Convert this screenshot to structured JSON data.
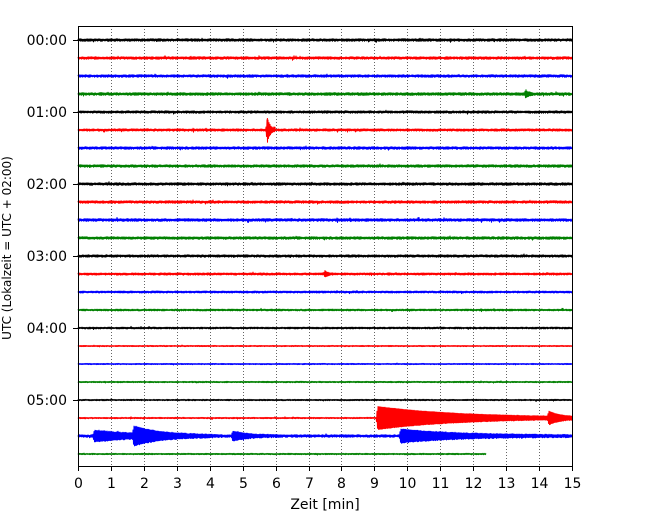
{
  "chart_data": {
    "type": "line",
    "xlabel": "Zeit  [min]",
    "ylabel": "UTC (Lokalzeit = UTC + 02:00)",
    "xlim": [
      0,
      15
    ],
    "x_ticks": [
      "0",
      "1",
      "2",
      "3",
      "4",
      "5",
      "6",
      "7",
      "8",
      "9",
      "10",
      "11",
      "12",
      "13",
      "14",
      "15"
    ],
    "y_tick_labels": [
      "00:00",
      "01:00",
      "02:00",
      "03:00",
      "04:00",
      "05:00"
    ],
    "rows_per_hour": 4,
    "trace_minutes": 15,
    "grid": {
      "vertical": "dotted",
      "horizontal": false
    },
    "colors": [
      "#000000",
      "#ff0000",
      "#0000ff",
      "#008000"
    ],
    "traces": [
      {
        "start": "00:00",
        "color": "#000000",
        "end_min": 15,
        "noise": 1.3
      },
      {
        "start": "00:15",
        "color": "#ff0000",
        "end_min": 15,
        "noise": 1.3
      },
      {
        "start": "00:30",
        "color": "#0000ff",
        "end_min": 15,
        "noise": 1.3
      },
      {
        "start": "00:45",
        "color": "#008000",
        "end_min": 15,
        "noise": 1.4,
        "events": [
          {
            "t": 13.6,
            "amp": 3
          }
        ]
      },
      {
        "start": "01:00",
        "color": "#000000",
        "end_min": 15,
        "noise": 1.2
      },
      {
        "start": "01:15",
        "color": "#ff0000",
        "end_min": 15,
        "noise": 1.2,
        "events": [
          {
            "t": 5.75,
            "amp": 12,
            "up": true
          }
        ]
      },
      {
        "start": "01:30",
        "color": "#0000ff",
        "end_min": 15,
        "noise": 1.3
      },
      {
        "start": "01:45",
        "color": "#008000",
        "end_min": 15,
        "noise": 1.3
      },
      {
        "start": "02:00",
        "color": "#000000",
        "end_min": 15,
        "noise": 1.3
      },
      {
        "start": "02:15",
        "color": "#ff0000",
        "end_min": 15,
        "noise": 1.3
      },
      {
        "start": "02:30",
        "color": "#0000ff",
        "end_min": 15,
        "noise": 1.4
      },
      {
        "start": "02:45",
        "color": "#008000",
        "end_min": 15,
        "noise": 1.3
      },
      {
        "start": "03:00",
        "color": "#000000",
        "end_min": 15,
        "noise": 1.2
      },
      {
        "start": "03:15",
        "color": "#ff0000",
        "end_min": 15,
        "noise": 1.1,
        "events": [
          {
            "t": 7.5,
            "amp": 2.5
          }
        ]
      },
      {
        "start": "03:30",
        "color": "#0000ff",
        "end_min": 15,
        "noise": 1.0
      },
      {
        "start": "03:45",
        "color": "#008000",
        "end_min": 15,
        "noise": 0.9
      },
      {
        "start": "04:00",
        "color": "#000000",
        "end_min": 15,
        "noise": 0.9
      },
      {
        "start": "04:15",
        "color": "#ff0000",
        "end_min": 15,
        "noise": 0.6
      },
      {
        "start": "04:30",
        "color": "#0000ff",
        "end_min": 15,
        "noise": 0.6
      },
      {
        "start": "04:45",
        "color": "#008000",
        "end_min": 15,
        "noise": 0.7
      },
      {
        "start": "05:00",
        "color": "#000000",
        "end_min": 15,
        "noise": 0.7
      },
      {
        "start": "05:15",
        "color": "#ff0000",
        "end_min": 15,
        "noise": 0.7,
        "events": [
          {
            "t": 9.1,
            "amp": 11,
            "decay": 2.5
          },
          {
            "t": 14.3,
            "amp": 5,
            "decay": 0.3
          }
        ]
      },
      {
        "start": "05:30",
        "color": "#0000ff",
        "end_min": 15,
        "noise": 1.3,
        "events": [
          {
            "t": 0.5,
            "amp": 5,
            "decay": 1.3
          },
          {
            "t": 1.7,
            "amp": 7,
            "decay": 0.8
          },
          {
            "t": 4.7,
            "amp": 4,
            "decay": 0.5
          },
          {
            "t": 9.8,
            "amp": 6,
            "decay": 1.8
          }
        ]
      },
      {
        "start": "05:45",
        "color": "#008000",
        "end_min": 12.4,
        "noise": 0.7
      }
    ]
  }
}
